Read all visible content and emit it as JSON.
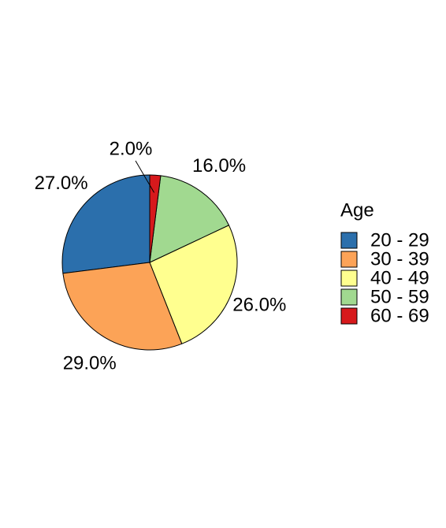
{
  "chart_data": {
    "type": "pie",
    "categories": [
      "20 - 29",
      "30 - 39",
      "40 - 49",
      "50 - 59",
      "60 - 69"
    ],
    "values": [
      27,
      29,
      26,
      16,
      2
    ],
    "value_labels": [
      "27.0%",
      "29.0%",
      "26.0%",
      "16.0%",
      "2.0%"
    ],
    "colors": [
      "#2b6fac",
      "#fca357",
      "#ffff8f",
      "#a1d990",
      "#d7191c"
    ],
    "legend_title": "Age",
    "legend": "right"
  }
}
